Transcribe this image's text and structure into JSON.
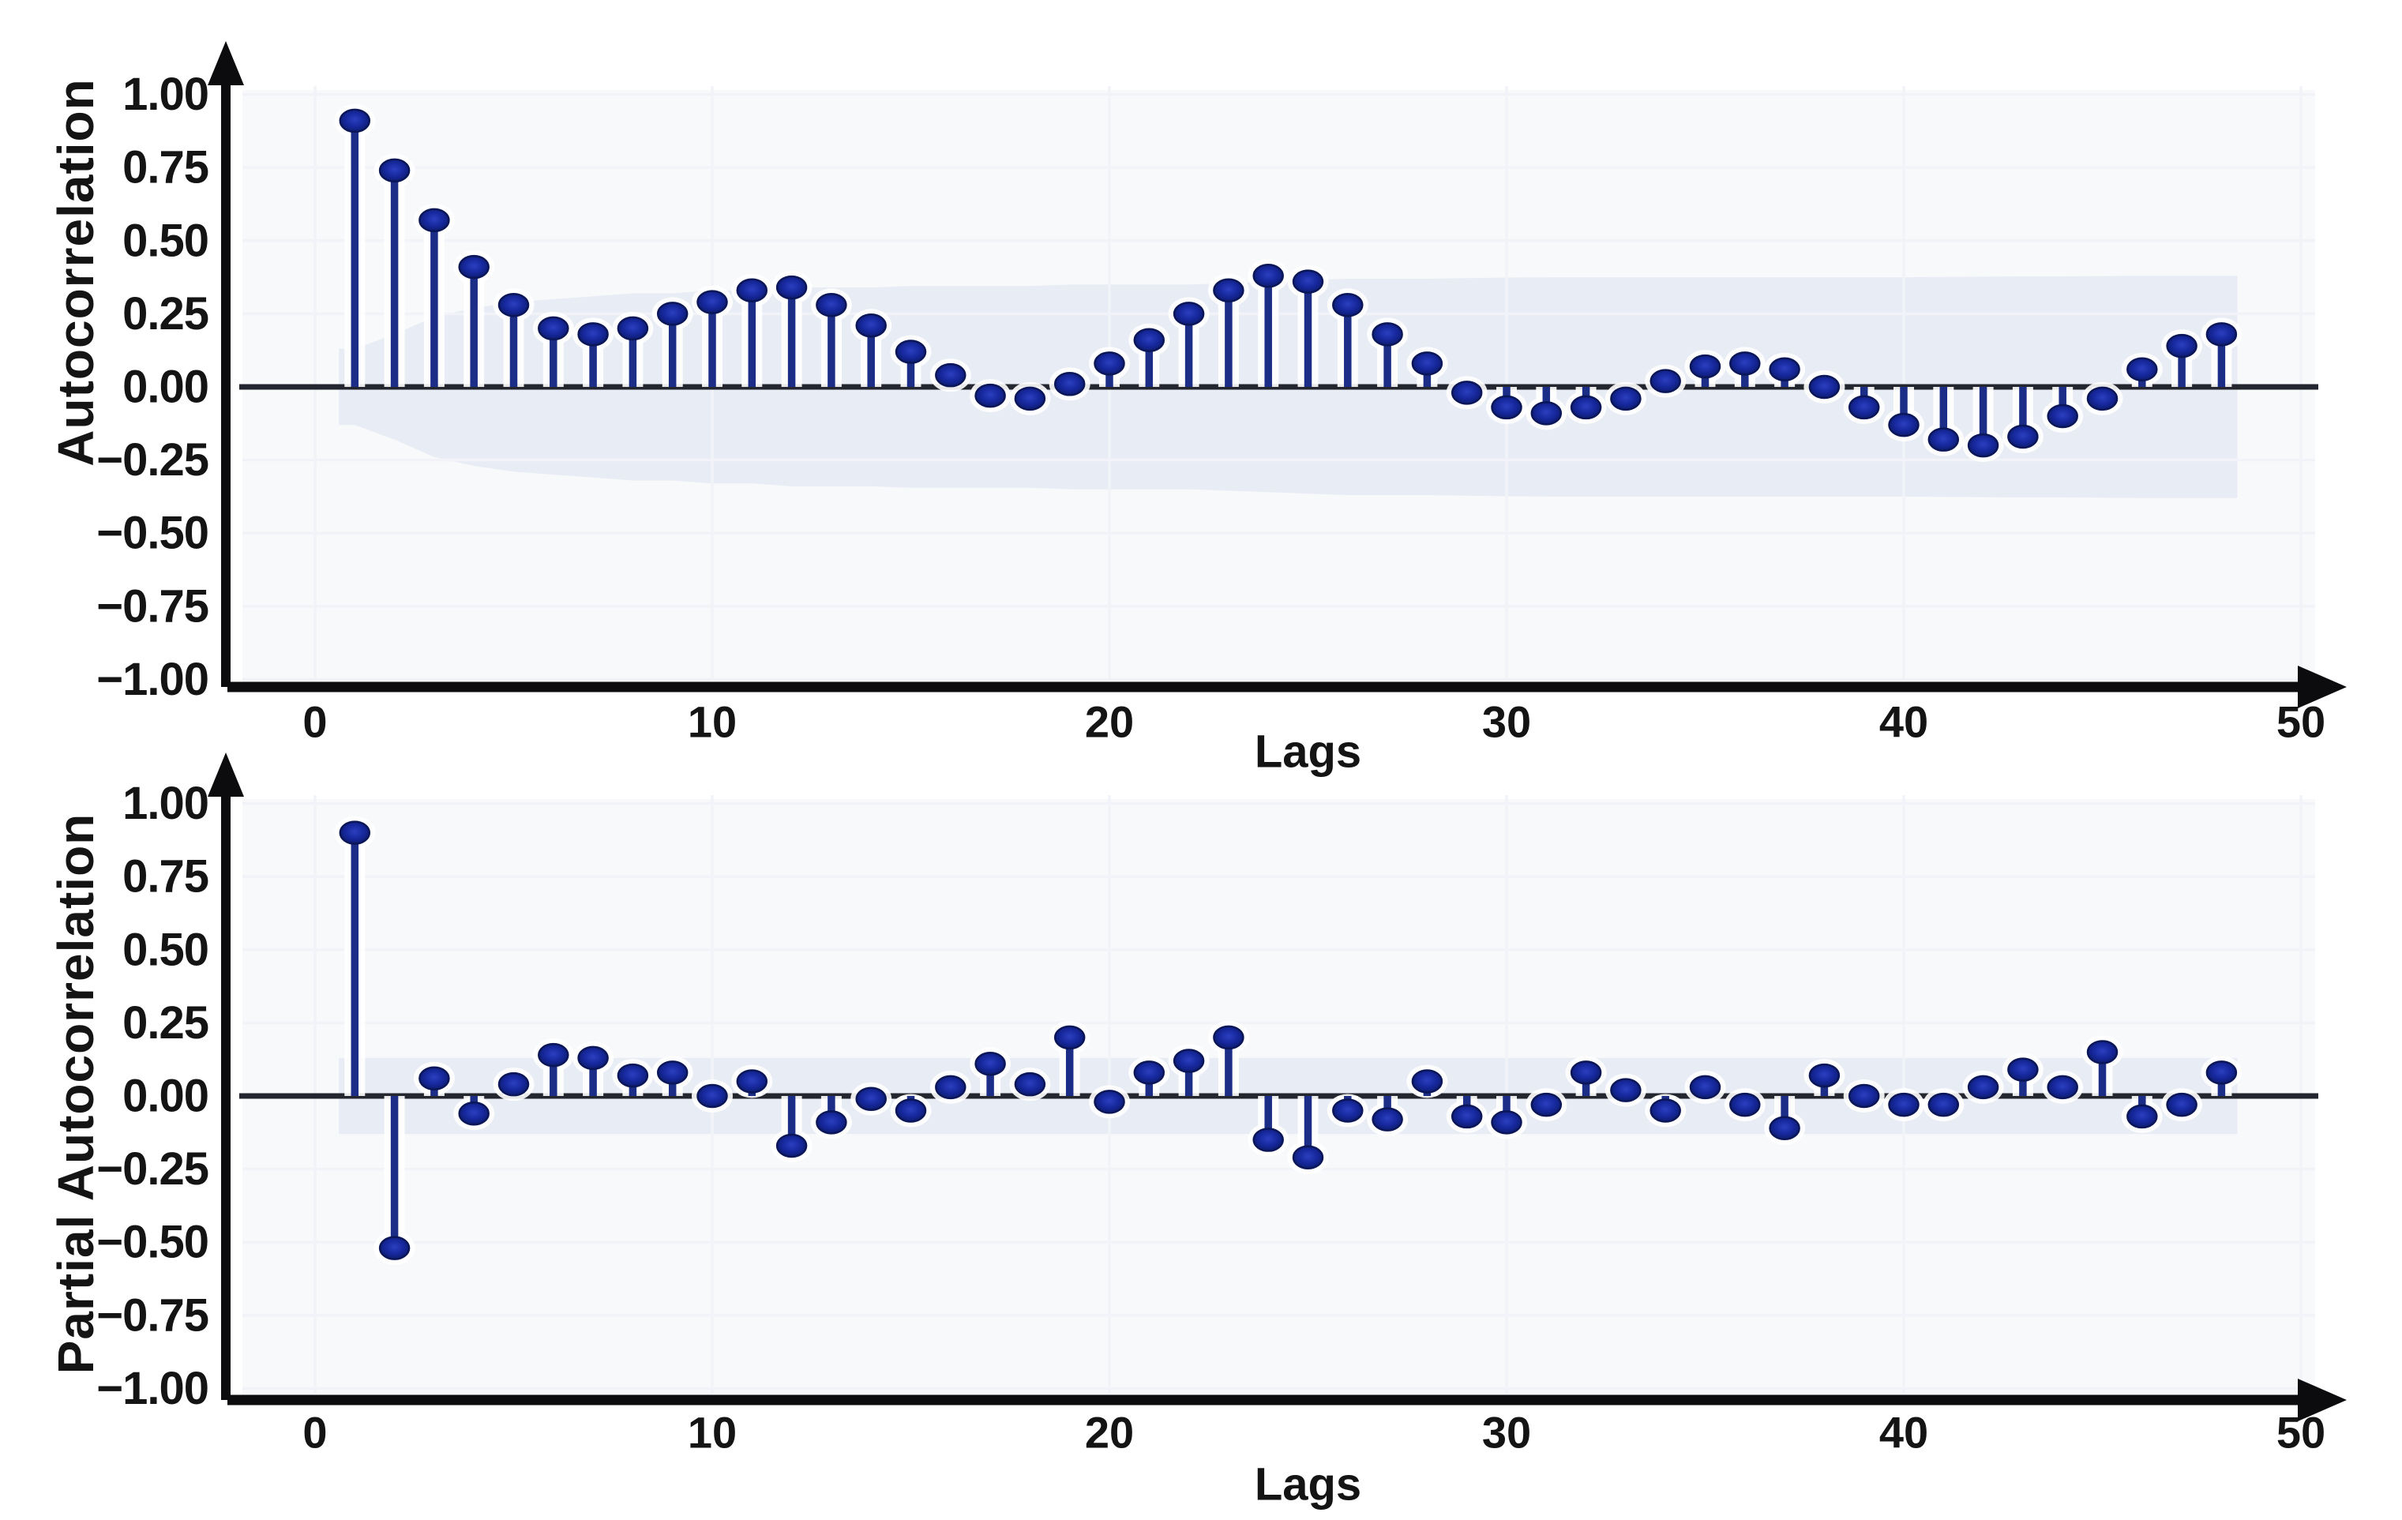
{
  "figure": {
    "description": "Two stacked stem plots: autocorrelation (ACF) and partial autocorrelation (PACF) versus lag, each with a shaded confidence band, arrowed black axes, and navy stems with elliptical dots.",
    "background": "#ffffff"
  },
  "colors": {
    "stem": "#1b2d86",
    "dot_center": "#2b3fc0",
    "dot_edge": "#0b1a66",
    "dot_rim": "#0a1657",
    "halo": "#ffffff",
    "zero_line": "#23262e",
    "axis": "#0c0c0e",
    "text": "#141414",
    "band": "#e8ecf4",
    "plot_bg": "#f8f9fb",
    "grid": "#f1f3f8"
  },
  "chart_data": [
    {
      "type": "stem",
      "title": "",
      "ylabel": "Autocorrelation",
      "xlabel": "Lags",
      "xticks": [
        0,
        10,
        20,
        30,
        40,
        50
      ],
      "yticks": [
        {
          "v": 1.0,
          "label": "1.00"
        },
        {
          "v": 0.75,
          "label": "0.75"
        },
        {
          "v": 0.5,
          "label": "0.50"
        },
        {
          "v": 0.25,
          "label": "0.25"
        },
        {
          "v": 0.0,
          "label": "0.00"
        },
        {
          "v": -0.25,
          "label": "−0.25"
        },
        {
          "v": -0.5,
          "label": "−0.50"
        },
        {
          "v": -0.75,
          "label": "−0.75"
        },
        {
          "v": -1.0,
          "label": "−1.00"
        }
      ],
      "ylim": [
        -1.05,
        1.05
      ],
      "xlim": [
        -2,
        52
      ],
      "grid": true,
      "legend": null,
      "lags": [
        1,
        2,
        3,
        4,
        5,
        6,
        7,
        8,
        9,
        10,
        11,
        12,
        13,
        14,
        15,
        16,
        17,
        18,
        19,
        20,
        21,
        22,
        23,
        24,
        25,
        26,
        27,
        28,
        29,
        30,
        31,
        32,
        33,
        34,
        35,
        36,
        37,
        38,
        39,
        40,
        41,
        42,
        43,
        44,
        45,
        46,
        47,
        48
      ],
      "values": [
        0.91,
        0.74,
        0.57,
        0.41,
        0.28,
        0.2,
        0.18,
        0.2,
        0.25,
        0.29,
        0.33,
        0.34,
        0.28,
        0.21,
        0.12,
        0.04,
        -0.03,
        -0.04,
        0.01,
        0.08,
        0.16,
        0.25,
        0.33,
        0.38,
        0.36,
        0.28,
        0.18,
        0.08,
        -0.02,
        -0.07,
        -0.09,
        -0.07,
        -0.04,
        0.02,
        0.07,
        0.08,
        0.06,
        0.0,
        -0.07,
        -0.13,
        -0.18,
        -0.2,
        -0.17,
        -0.1,
        -0.04,
        0.06,
        0.14,
        0.18
      ],
      "ci": {
        "start_lag": 0.6,
        "end_lag": 48.4,
        "halfwidths": [
          0.13,
          0.18,
          0.24,
          0.27,
          0.29,
          0.3,
          0.31,
          0.32,
          0.32,
          0.33,
          0.33,
          0.34,
          0.34,
          0.34,
          0.345,
          0.345,
          0.345,
          0.345,
          0.35,
          0.35,
          0.35,
          0.35,
          0.355,
          0.36,
          0.365,
          0.37,
          0.37,
          0.37,
          0.372,
          0.374,
          0.375,
          0.375,
          0.375,
          0.375,
          0.375,
          0.375,
          0.375,
          0.375,
          0.375,
          0.375,
          0.376,
          0.377,
          0.378,
          0.378,
          0.379,
          0.38,
          0.38,
          0.38
        ]
      }
    },
    {
      "type": "stem",
      "title": "",
      "ylabel": "Partial Autocorrelation",
      "xlabel": "Lags",
      "xticks": [
        0,
        10,
        20,
        30,
        40,
        50
      ],
      "yticks": [
        {
          "v": 1.0,
          "label": "1.00"
        },
        {
          "v": 0.75,
          "label": "0.75"
        },
        {
          "v": 0.5,
          "label": "0.50"
        },
        {
          "v": 0.25,
          "label": "0.25"
        },
        {
          "v": 0.0,
          "label": "0.00"
        },
        {
          "v": -0.25,
          "label": "−0.25"
        },
        {
          "v": -0.5,
          "label": "−0.50"
        },
        {
          "v": -0.75,
          "label": "−0.75"
        },
        {
          "v": -1.0,
          "label": "−1.00"
        }
      ],
      "ylim": [
        -1.05,
        1.05
      ],
      "xlim": [
        -2,
        52
      ],
      "grid": true,
      "legend": null,
      "lags": [
        1,
        2,
        3,
        4,
        5,
        6,
        7,
        8,
        9,
        10,
        11,
        12,
        13,
        14,
        15,
        16,
        17,
        18,
        19,
        20,
        21,
        22,
        23,
        24,
        25,
        26,
        27,
        28,
        29,
        30,
        31,
        32,
        33,
        34,
        35,
        36,
        37,
        38,
        39,
        40,
        41,
        42,
        43,
        44,
        45,
        46,
        47,
        48
      ],
      "values": [
        0.9,
        -0.52,
        0.06,
        -0.06,
        0.04,
        0.14,
        0.13,
        0.07,
        0.08,
        0.0,
        0.05,
        -0.17,
        -0.09,
        -0.01,
        -0.05,
        0.03,
        0.11,
        0.04,
        0.2,
        -0.02,
        0.08,
        0.12,
        0.2,
        -0.15,
        -0.21,
        -0.05,
        -0.08,
        0.05,
        -0.07,
        -0.09,
        -0.03,
        0.08,
        0.02,
        -0.05,
        0.03,
        -0.03,
        -0.11,
        0.07,
        0.0,
        -0.03,
        -0.03,
        0.03,
        0.09,
        0.03,
        0.15,
        -0.07,
        -0.03,
        0.08
      ],
      "ci": {
        "start_lag": 0.6,
        "end_lag": 48.4,
        "halfwidth_constant": 0.13
      }
    }
  ]
}
